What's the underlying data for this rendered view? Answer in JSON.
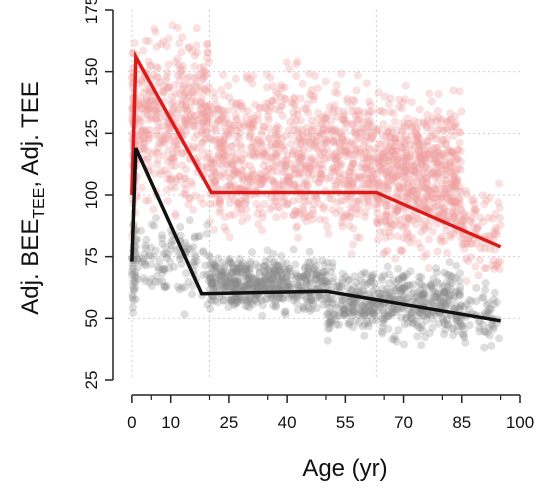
{
  "chart_data": {
    "type": "scatter",
    "title": "",
    "xlabel": "Age (yr)",
    "ylabel": {
      "part1": "Adj. BEE",
      "sub1": "TEE",
      "part2": ", Adj. TEE"
    },
    "xlim": [
      -1,
      100
    ],
    "ylim": [
      25,
      175
    ],
    "x_ticks": [
      0,
      10,
      25,
      40,
      55,
      70,
      85,
      100
    ],
    "x_minor_ticks": [
      5,
      20,
      35,
      50,
      65,
      80,
      95
    ],
    "y_ticks": [
      25,
      50,
      75,
      100,
      125,
      150,
      175
    ],
    "grid": "dotted",
    "grid_x": [
      0,
      20,
      63
    ],
    "grid_y": [
      50,
      75,
      100,
      125,
      150
    ],
    "series": [
      {
        "color": "#dd1a1a",
        "point_color": "#f0a0a0",
        "line": {
          "x": [
            0,
            1,
            20.5,
            63,
            95
          ],
          "y": [
            100,
            156,
            101,
            101,
            79
          ]
        },
        "scatter_bands": [
          {
            "x_range": [
              0,
              1
            ],
            "y_range": [
              70,
              175
            ],
            "n": 70
          },
          {
            "x_range": [
              1,
              20
            ],
            "y_range": [
              85,
              178
            ],
            "n": 420
          },
          {
            "x_range": [
              20,
              63
            ],
            "y_range": [
              70,
              160
            ],
            "n": 900
          },
          {
            "x_range": [
              63,
              85
            ],
            "y_range": [
              65,
              150
            ],
            "n": 650
          },
          {
            "x_range": [
              85,
              95
            ],
            "y_range": [
              60,
              110
            ],
            "n": 90
          }
        ]
      },
      {
        "color": "#111111",
        "point_color": "#8a8a8a",
        "line": {
          "x": [
            0,
            1,
            18,
            50,
            95
          ],
          "y": [
            73,
            119,
            60,
            61,
            49
          ]
        },
        "scatter_bands": [
          {
            "x_range": [
              0,
              1
            ],
            "y_range": [
              45,
              95
            ],
            "n": 40
          },
          {
            "x_range": [
              1,
              20
            ],
            "y_range": [
              48,
              100
            ],
            "n": 120
          },
          {
            "x_range": [
              20,
              50
            ],
            "y_range": [
              48,
              80
            ],
            "n": 500
          },
          {
            "x_range": [
              50,
              85
            ],
            "y_range": [
              38,
              75
            ],
            "n": 500
          },
          {
            "x_range": [
              85,
              95
            ],
            "y_range": [
              32,
              70
            ],
            "n": 60
          }
        ]
      }
    ]
  }
}
